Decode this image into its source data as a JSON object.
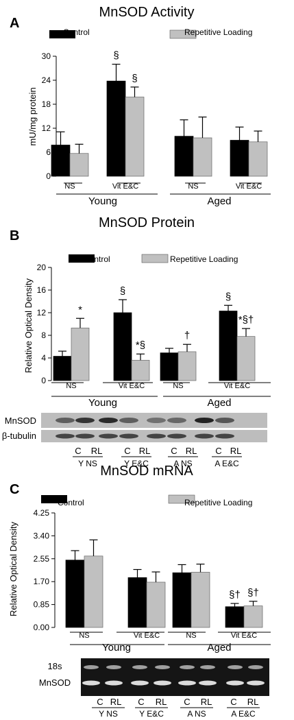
{
  "legend": {
    "control": "Control",
    "repetitive_loading": "Repetitive Loading"
  },
  "colors": {
    "control": "#000000",
    "repetitive_loading": "#c0c0c0",
    "blot_bg": "#bdbdbd",
    "gel_bg": "#151515"
  },
  "chart_data": [
    {
      "type": "bar",
      "panel_letter": "A",
      "title": "MnSOD Activity",
      "ylabel": "mU/mg protein",
      "ylim": [
        0,
        30
      ],
      "yticks": [
        "0",
        "6",
        "12",
        "18",
        "24",
        "30"
      ],
      "categories": [
        "NS",
        "Vit E&C",
        "NS",
        "Vit E&C"
      ],
      "groups": [
        "Young",
        "Aged"
      ],
      "series": [
        {
          "name": "Control",
          "values": [
            7.8,
            23.8,
            10.0,
            9.0
          ],
          "errors": [
            3.3,
            4.2,
            4.1,
            3.3
          ],
          "marks": [
            "",
            "§",
            "",
            ""
          ]
        },
        {
          "name": "Repetitive Loading",
          "values": [
            5.7,
            19.8,
            9.6,
            8.6
          ],
          "errors": [
            2.3,
            2.5,
            5.2,
            2.7
          ],
          "marks": [
            "",
            "§",
            "",
            ""
          ]
        }
      ]
    },
    {
      "type": "bar",
      "panel_letter": "B",
      "title": "MnSOD Protein",
      "ylabel": "Relative Optical Density",
      "ylim": [
        0,
        20
      ],
      "yticks": [
        "0",
        "4",
        "8",
        "12",
        "16",
        "20"
      ],
      "categories": [
        "NS",
        "Vit E&C",
        "NS",
        "Vit E&C"
      ],
      "groups": [
        "Young",
        "Aged"
      ],
      "series": [
        {
          "name": "Control",
          "values": [
            4.3,
            12.0,
            4.9,
            12.3
          ],
          "errors": [
            0.9,
            2.3,
            0.8,
            1.0
          ],
          "marks": [
            "",
            "§",
            "",
            "§"
          ]
        },
        {
          "name": "Repetitive Loading",
          "values": [
            9.3,
            3.6,
            5.1,
            7.8
          ],
          "errors": [
            1.7,
            1.1,
            1.3,
            1.4
          ],
          "marks": [
            "*",
            "*§",
            "†",
            "*§†"
          ]
        }
      ],
      "blot": {
        "rows": [
          "MnSOD",
          "β-tubulin"
        ],
        "lane_labels": [
          "C",
          "RL",
          "C",
          "RL",
          "C",
          "RL",
          "C",
          "RL"
        ],
        "group_labels": [
          "Y NS",
          "Y E&C",
          "A NS",
          "A E&C"
        ]
      }
    },
    {
      "type": "bar",
      "panel_letter": "C",
      "title": "MnSOD  mRNA",
      "ylabel": "Relative Optical Density",
      "ylim": [
        0,
        4.25
      ],
      "yticks": [
        "0.00",
        "0.85",
        "1.70",
        "2.55",
        "3.40",
        "4.25"
      ],
      "categories": [
        "NS",
        "Vit E&C",
        "NS",
        "Vit E&C"
      ],
      "groups": [
        "Young",
        "Aged"
      ],
      "series": [
        {
          "name": "Control",
          "values": [
            2.5,
            1.85,
            2.03,
            0.77
          ],
          "errors": [
            0.35,
            0.3,
            0.3,
            0.12
          ],
          "marks": [
            "",
            "",
            "",
            "§†"
          ]
        },
        {
          "name": "Repetitive Loading",
          "values": [
            2.65,
            1.68,
            2.05,
            0.8
          ],
          "errors": [
            0.6,
            0.38,
            0.3,
            0.17
          ],
          "marks": [
            "",
            "",
            "",
            "§†"
          ]
        }
      ],
      "gel": {
        "rows": [
          "18s",
          "MnSOD"
        ],
        "lane_labels": [
          "C",
          "RL",
          "C",
          "RL",
          "C",
          "RL",
          "C",
          "RL"
        ],
        "group_labels": [
          "Y NS",
          "Y E&C",
          "A NS",
          "A E&C"
        ]
      }
    }
  ]
}
